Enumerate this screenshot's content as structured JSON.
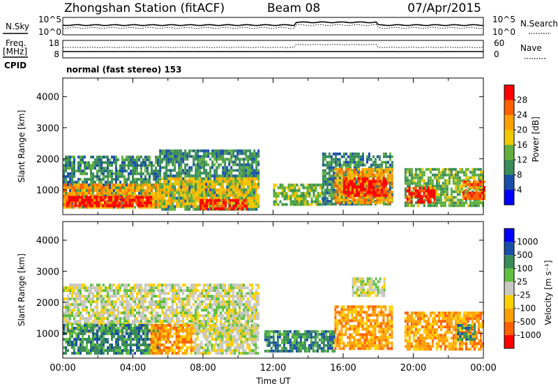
{
  "header": {
    "station": "Zhongshan Station (fitACF)",
    "beam": "Beam 08",
    "date": "07/Apr/2015"
  },
  "top_panel": {
    "left_label": "N.Sky",
    "right_label": "N.Search",
    "left_ticks": [
      "10^5",
      "10^0"
    ],
    "right_ticks": [
      "10^5",
      "10^0"
    ]
  },
  "freq_panel": {
    "left_label_1": "Freq.",
    "left_label_2": "[MHz]",
    "right_label": "Nave",
    "left_ticks": [
      "18",
      "8"
    ],
    "right_ticks": [
      "60",
      "0"
    ]
  },
  "cpid": {
    "label": "CPID",
    "value": "normal (fast stereo) 153"
  },
  "colors": {
    "power": [
      "#0000ff",
      "#1a4fa8",
      "#3a8c5a",
      "#60b040",
      "#f0c800",
      "#ffa000",
      "#ff6000",
      "#ff0000"
    ],
    "velocity": [
      "#ff0000",
      "#ff6000",
      "#ffa000",
      "#ffd000",
      "#c8c8c0",
      "#60c040",
      "#3a8c5a",
      "#1a4fa8",
      "#0000ff"
    ]
  },
  "chart_data": [
    {
      "type": "heatmap",
      "title": "Power",
      "ylabel": "Slant Range [km]",
      "xlabel": "",
      "x_ticks": [],
      "y_ticks": [
        "1000",
        "2000",
        "3000",
        "4000"
      ],
      "ylim": [
        200,
        4600
      ],
      "colorbar_label": "Power [dB]",
      "colorbar_ticks": [
        "4",
        "8",
        "12",
        "16",
        "20",
        "24",
        "28"
      ],
      "colorbar_range": [
        0,
        32
      ],
      "regions": [
        {
          "t0": 0.0,
          "t1": 5.5,
          "r0": 400,
          "r1": 2100,
          "level": 2
        },
        {
          "t0": 0.0,
          "t1": 5.5,
          "r0": 400,
          "r1": 1200,
          "level": 5
        },
        {
          "t0": 0.2,
          "t1": 5.0,
          "r0": 450,
          "r1": 800,
          "level": 7
        },
        {
          "t0": 5.5,
          "t1": 11.2,
          "r0": 400,
          "r1": 2300,
          "level": 2
        },
        {
          "t0": 5.5,
          "t1": 11.2,
          "r0": 450,
          "r1": 1400,
          "level": 4
        },
        {
          "t0": 7.8,
          "t1": 10.5,
          "r0": 400,
          "r1": 700,
          "level": 7
        },
        {
          "t0": 12.0,
          "t1": 14.8,
          "r0": 500,
          "r1": 1200,
          "level": 3
        },
        {
          "t0": 14.8,
          "t1": 18.8,
          "r0": 500,
          "r1": 2200,
          "level": 2
        },
        {
          "t0": 15.5,
          "t1": 18.8,
          "r0": 600,
          "r1": 1700,
          "level": 5
        },
        {
          "t0": 16.0,
          "t1": 18.5,
          "r0": 800,
          "r1": 1400,
          "level": 7
        },
        {
          "t0": 19.5,
          "t1": 24.0,
          "r0": 500,
          "r1": 1700,
          "level": 3
        },
        {
          "t0": 19.6,
          "t1": 21.2,
          "r0": 600,
          "r1": 1100,
          "level": 7
        },
        {
          "t0": 22.8,
          "t1": 24.0,
          "r0": 700,
          "r1": 1300,
          "level": 6
        }
      ]
    },
    {
      "type": "heatmap",
      "title": "Velocity",
      "ylabel": "Slant Range [km]",
      "xlabel": "Time UT",
      "x_ticks": [
        "00:00",
        "04:00",
        "08:00",
        "12:00",
        "16:00",
        "20:00",
        "00:00"
      ],
      "x_range_hours": [
        0,
        24
      ],
      "y_ticks": [
        "1000",
        "2000",
        "3000",
        "4000"
      ],
      "ylim": [
        200,
        4600
      ],
      "colorbar_label": "Velocity [m s⁻¹]",
      "colorbar_ticks": [
        "-1000",
        "-500",
        "-100",
        "-25",
        "25",
        "100",
        "500",
        "1000"
      ],
      "colorbar_range": [
        -1000,
        1000
      ],
      "regions": [
        {
          "t0": 0.0,
          "t1": 11.2,
          "r0": 1000,
          "r1": 2600,
          "level": 4
        },
        {
          "t0": 0.0,
          "t1": 5.5,
          "r0": 400,
          "r1": 1300,
          "level": 6
        },
        {
          "t0": 5.0,
          "t1": 7.5,
          "r0": 400,
          "r1": 1300,
          "level": 2
        },
        {
          "t0": 7.5,
          "t1": 11.2,
          "r0": 400,
          "r1": 1300,
          "level": 4
        },
        {
          "t0": 11.5,
          "t1": 15.5,
          "r0": 400,
          "r1": 1100,
          "level": 6
        },
        {
          "t0": 15.5,
          "t1": 18.8,
          "r0": 500,
          "r1": 1900,
          "level": 2
        },
        {
          "t0": 16.5,
          "t1": 18.3,
          "r0": 2200,
          "r1": 2800,
          "level": 4
        },
        {
          "t0": 19.5,
          "t1": 24.0,
          "r0": 500,
          "r1": 1700,
          "level": 2
        },
        {
          "t0": 22.5,
          "t1": 23.5,
          "r0": 800,
          "r1": 1300,
          "level": 6
        }
      ]
    }
  ]
}
